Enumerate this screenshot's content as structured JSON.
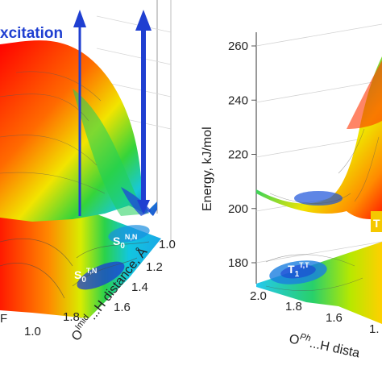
{
  "chart_data": [
    {
      "type": "surface",
      "annotation": "xcitation",
      "xlabel_main": "O",
      "xlabel_sup": "Imid",
      "xlabel_rest": "...H distance, Å",
      "x_ticks": [
        "1.0",
        "1.2",
        "1.4",
        "1.6",
        "1.8"
      ],
      "front_tick": "1.0",
      "front_label_fragment": "F",
      "state_labels": [
        {
          "base": "S",
          "sub": "0",
          "sup": "N,N"
        },
        {
          "base": "S",
          "sub": "0",
          "sup": "T,N"
        }
      ],
      "arrows": 2
    },
    {
      "type": "surface",
      "ylabel": "Energy, kJ/mol",
      "y_ticks": [
        "260",
        "240",
        "220",
        "200",
        "180"
      ],
      "ylim": [
        180,
        260
      ],
      "xlabel_main": "O",
      "xlabel_sup": "Ph",
      "xlabel_rest": "...H dista",
      "x_ticks": [
        "2.0",
        "1.8",
        "1.6",
        "1."
      ],
      "state_labels": [
        {
          "base": "T",
          "sub": "1",
          "sup": "T,T"
        }
      ],
      "edge_fragment": "T"
    }
  ],
  "colors": {
    "accent": "#1f3fd1",
    "low": "#1a2fd0",
    "mid": "#19d046",
    "high": "#ff1a00"
  }
}
